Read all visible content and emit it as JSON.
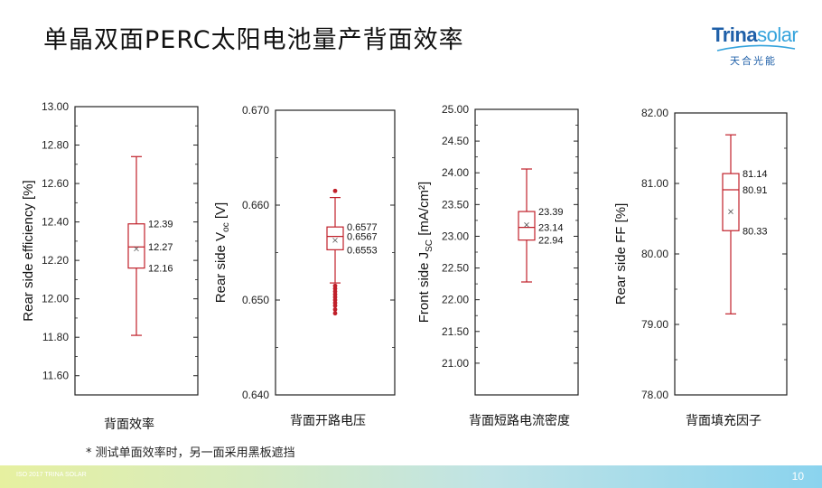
{
  "title": "单晶双面PERC太阳电池量产背面效率",
  "logo": {
    "brand_a": "Trina",
    "brand_b": "solar",
    "sub": "天合光能"
  },
  "footnote": "* 测试单面效率时，另一面采用黑板遮挡",
  "footer": {
    "small_text": "ISO 2017 TRINA SOLAR",
    "page": "10"
  },
  "colors": {
    "box": "#c0202a",
    "mean_marker": "#555555",
    "axis": "#222222"
  },
  "chart_data": [
    {
      "type": "box",
      "ylabel": "Rear side efficiency [%]",
      "caption": "背面效率",
      "ylim": [
        11.5,
        13.0
      ],
      "yticks": [
        "11.60",
        "11.80",
        "12.00",
        "12.20",
        "12.40",
        "12.60",
        "12.80",
        "13.00"
      ],
      "ytick_values": [
        11.6,
        11.8,
        12.0,
        12.2,
        12.4,
        12.6,
        12.8,
        13.0
      ],
      "whisker_low": 11.81,
      "q1": 12.16,
      "median": 12.27,
      "q3": 12.39,
      "whisker_high": 12.74,
      "mean": 12.26,
      "outliers": [],
      "labels": [
        "12.39",
        "12.27",
        "12.16"
      ],
      "label_values": [
        12.39,
        12.27,
        12.16
      ]
    },
    {
      "type": "box",
      "ylabel": "Rear side V",
      "ylabel_sub": "oc",
      "ylabel_suffix": " [V]",
      "caption": "背面开路电压",
      "ylim": [
        0.64,
        0.67
      ],
      "yticks": [
        "0.640",
        "0.650",
        "0.660",
        "0.670"
      ],
      "ytick_values": [
        0.64,
        0.65,
        0.66,
        0.67
      ],
      "whisker_low": 0.6518,
      "q1": 0.6553,
      "median": 0.6567,
      "q3": 0.6577,
      "whisker_high": 0.6608,
      "mean": 0.6563,
      "outliers": [
        0.6615,
        0.6515,
        0.6512,
        0.6509,
        0.6506,
        0.6503,
        0.65,
        0.6497,
        0.6494,
        0.649,
        0.6486
      ],
      "labels": [
        "0.6577",
        "0.6567",
        "0.6553"
      ],
      "label_values": [
        0.6577,
        0.6567,
        0.6553
      ]
    },
    {
      "type": "box",
      "ylabel": "Front side J",
      "ylabel_sub": "SC",
      "ylabel_suffix": " [mA/cm²]",
      "caption": "背面短路电流密度",
      "ylim": [
        20.5,
        25.0
      ],
      "yticks": [
        "21.00",
        "21.50",
        "22.00",
        "22.50",
        "23.00",
        "23.50",
        "24.00",
        "24.50",
        "25.00"
      ],
      "ytick_values": [
        21.0,
        21.5,
        22.0,
        22.5,
        23.0,
        23.5,
        24.0,
        24.5,
        25.0
      ],
      "whisker_low": 22.28,
      "q1": 22.94,
      "median": 23.14,
      "q3": 23.39,
      "whisker_high": 24.06,
      "mean": 23.18,
      "outliers": [],
      "labels": [
        "23.39",
        "23.14",
        "22.94"
      ],
      "label_values": [
        23.39,
        23.14,
        22.94
      ]
    },
    {
      "type": "box",
      "ylabel": "Rear side FF [%]",
      "caption": "背面填充因子",
      "ylim": [
        78.0,
        82.0
      ],
      "yticks": [
        "78.00",
        "79.00",
        "80.00",
        "81.00",
        "82.00"
      ],
      "ytick_values": [
        78.0,
        79.0,
        80.0,
        81.0,
        82.0
      ],
      "whisker_low": 79.15,
      "q1": 80.33,
      "median": 80.91,
      "q3": 81.14,
      "whisker_high": 81.69,
      "mean": 80.6,
      "outliers": [],
      "labels": [
        "81.14",
        "80.91",
        "80.33"
      ],
      "label_values": [
        81.14,
        80.91,
        80.33
      ]
    }
  ]
}
